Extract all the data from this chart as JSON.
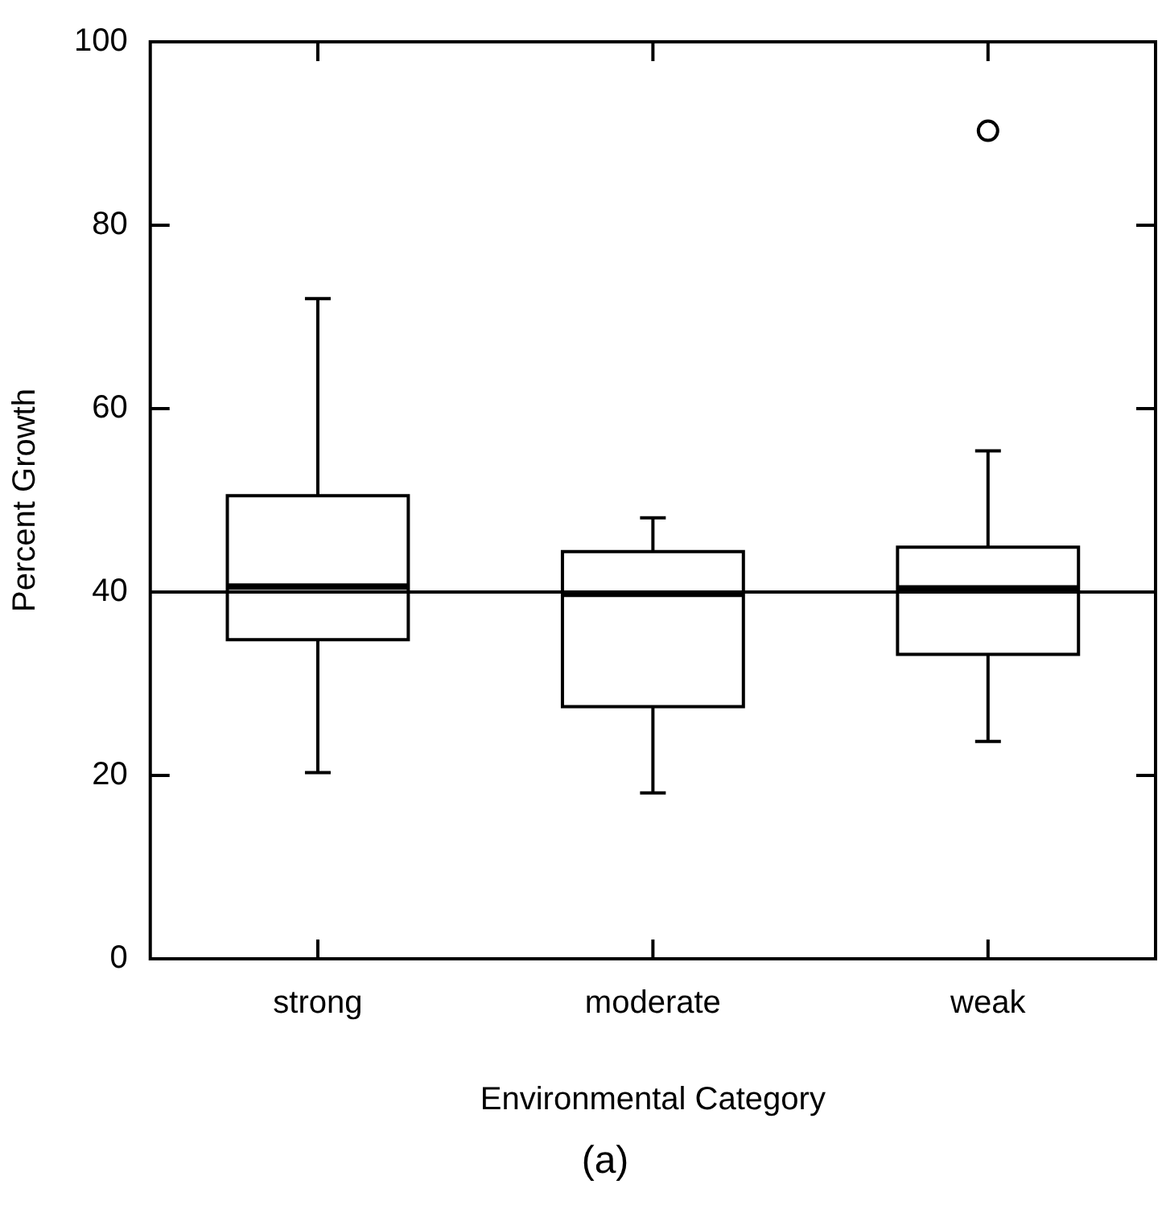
{
  "chart_data": {
    "type": "box",
    "xlabel": "Environmental Category",
    "ylabel": "Percent Growth",
    "categories": [
      "strong",
      "moderate",
      "weak"
    ],
    "boxes": [
      {
        "low": 20.3,
        "q1": 34.8,
        "median": 40.6,
        "q3": 50.5,
        "high": 72
      },
      {
        "low": 18.1,
        "q1": 27.5,
        "median": 39.8,
        "q3": 44.4,
        "high": 48.1
      },
      {
        "low": 23.7,
        "q1": 33.2,
        "median": 40.4,
        "q3": 44.9,
        "high": 55.4,
        "outliers": [
          90.3
        ]
      }
    ],
    "color": "#000000",
    "ylim": [
      0,
      100
    ],
    "yticks": [
      0,
      20,
      40,
      60,
      80,
      100
    ],
    "ref_lines": [
      {
        "axis": "y",
        "value": 40
      }
    ],
    "annotations": [
      "(a)"
    ],
    "grid": false,
    "legend": false
  }
}
